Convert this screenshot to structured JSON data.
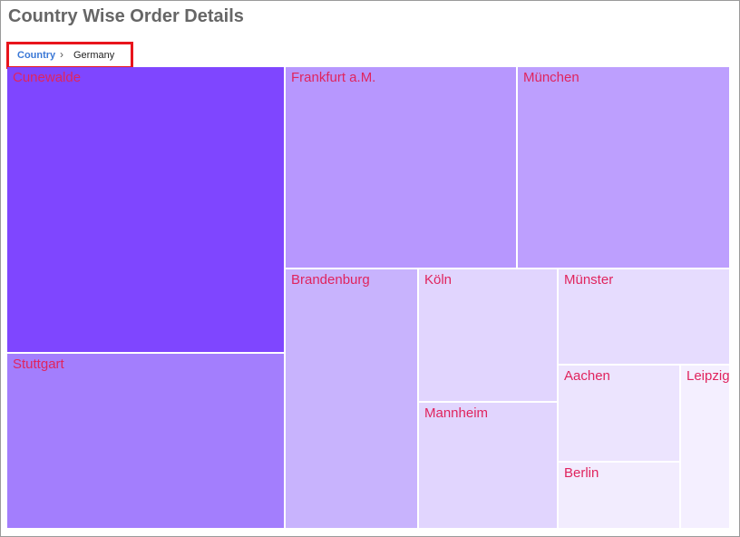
{
  "header": {
    "title": "Country Wise Order Details"
  },
  "breadcrumb": {
    "items": [
      "Country",
      "Germany"
    ]
  },
  "tiles": [
    {
      "label": "Cunewalde"
    },
    {
      "label": "Stuttgart"
    },
    {
      "label": "Frankfurt a.M."
    },
    {
      "label": "München"
    },
    {
      "label": "Brandenburg"
    },
    {
      "label": "Köln"
    },
    {
      "label": "Mannheim"
    },
    {
      "label": "Münster"
    },
    {
      "label": "Aachen"
    },
    {
      "label": "Berlin"
    },
    {
      "label": "Leipzig"
    }
  ]
}
